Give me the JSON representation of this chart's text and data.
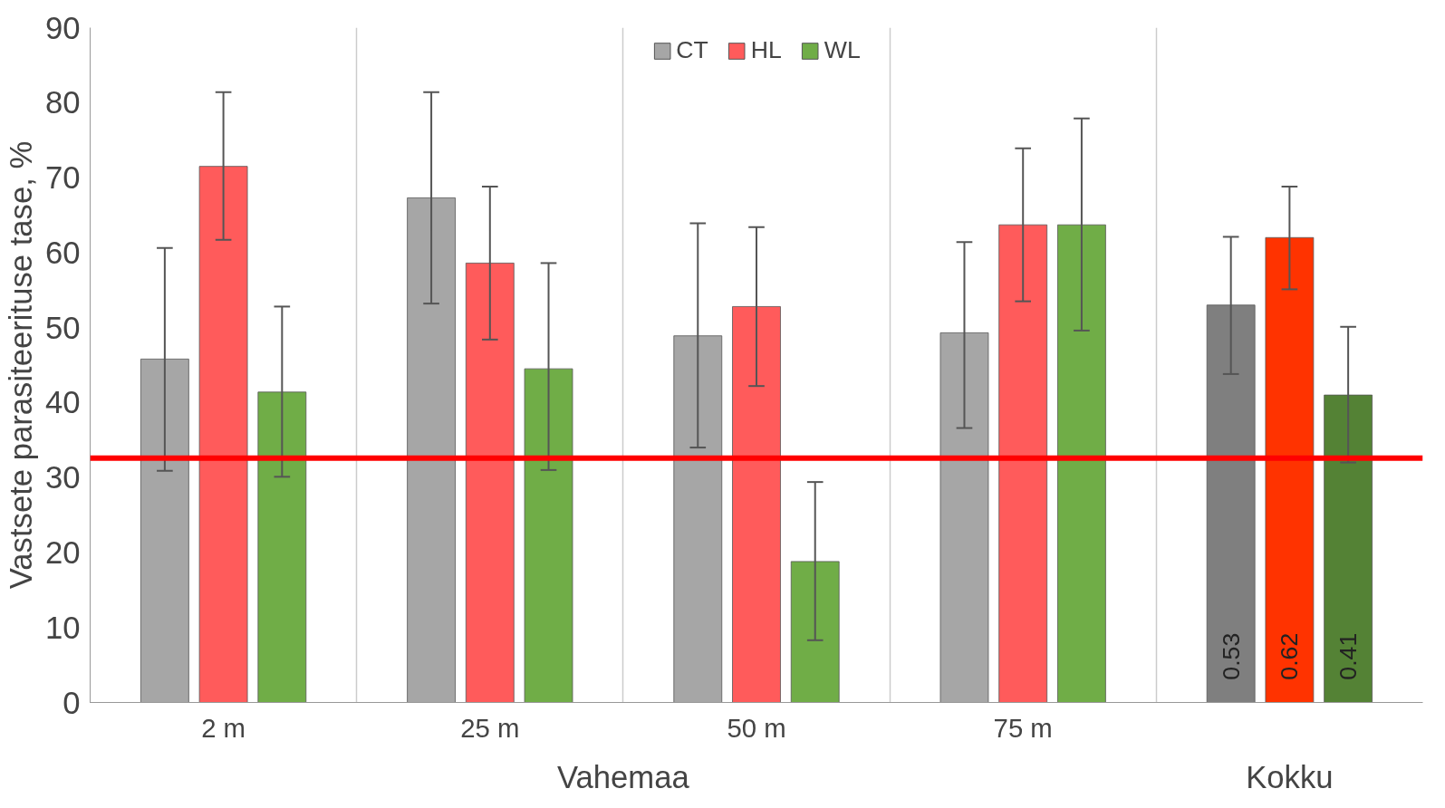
{
  "chart_data": {
    "type": "bar",
    "ylabel": "Vastsete parasiteerituse tase, %",
    "categories": [
      "2 m",
      "25 m",
      "50 m",
      "75 m",
      null
    ],
    "annotations": [
      "Vahemaa",
      "Kokku",
      "0.53",
      "0.62",
      "0.41"
    ],
    "ylim": [
      0,
      90
    ],
    "yticks": [
      0,
      10,
      20,
      30,
      40,
      50,
      60,
      70,
      80,
      90
    ],
    "grid": "x",
    "legend": "top",
    "ref_lines": [
      {
        "axis": "y",
        "value": 32.6,
        "color": "#ff0000"
      }
    ],
    "series": [
      {
        "name": "CT",
        "color": "#a6a6a6",
        "colors": [
          "#a6a6a6",
          "#a6a6a6",
          "#a6a6a6",
          "#a6a6a6",
          "#7f7f7f"
        ],
        "values": [
          45.8,
          67.3,
          48.9,
          49.3,
          53
        ],
        "errors": [
          [
            30.9,
            60.6
          ],
          [
            53.2,
            81.4
          ],
          [
            34,
            63.9
          ],
          [
            36.6,
            61.4
          ],
          [
            43.8,
            62.1
          ]
        ]
      },
      {
        "name": "HL",
        "color": "#ff5b5b",
        "colors": [
          "#ff5b5b",
          "#ff5b5b",
          "#ff5b5b",
          "#ff5b5b",
          "#ff3300"
        ],
        "values": [
          71.5,
          58.6,
          52.8,
          63.7,
          62
        ],
        "errors": [
          [
            61.7,
            81.4
          ],
          [
            48.4,
            68.8
          ],
          [
            42.2,
            63.4
          ],
          [
            53.5,
            73.9
          ],
          [
            55.1,
            68.8
          ]
        ]
      },
      {
        "name": "WL",
        "color": "#70ad47",
        "colors": [
          "#70ad47",
          "#70ad47",
          "#70ad47",
          "#70ad47",
          "#548235"
        ],
        "values": [
          41.4,
          44.5,
          18.8,
          63.7,
          41
        ],
        "errors": [
          [
            30.1,
            52.8
          ],
          [
            31,
            58.6
          ],
          [
            8.3,
            29.4
          ],
          [
            49.6,
            77.9
          ],
          [
            32,
            50.1
          ]
        ]
      }
    ]
  }
}
